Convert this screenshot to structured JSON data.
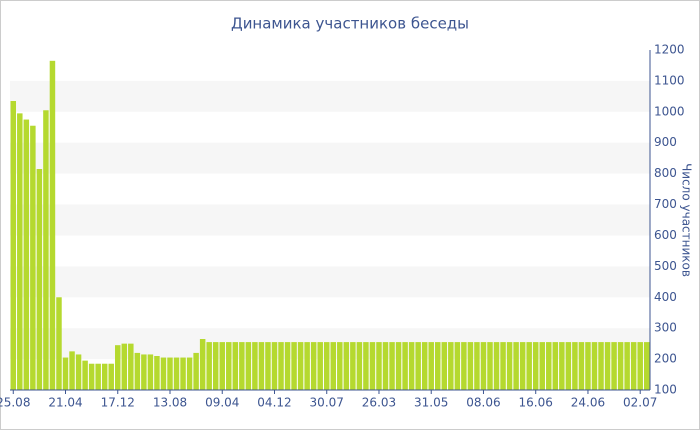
{
  "chart_data": {
    "type": "bar",
    "title": "Динамика участников беседы",
    "y_label": "Число участников",
    "categories": [
      "25.08",
      null,
      null,
      null,
      null,
      null,
      null,
      null,
      "21.04",
      null,
      null,
      null,
      null,
      null,
      null,
      null,
      "17.12",
      null,
      null,
      null,
      null,
      null,
      null,
      null,
      "13.08",
      null,
      null,
      null,
      null,
      null,
      null,
      null,
      "09.04",
      null,
      null,
      null,
      null,
      null,
      null,
      null,
      "04.12",
      null,
      null,
      null,
      null,
      null,
      null,
      null,
      "30.07",
      null,
      null,
      null,
      null,
      null,
      null,
      null,
      "26.03",
      null,
      null,
      null,
      null,
      null,
      null,
      null,
      "31.05",
      null,
      null,
      null,
      null,
      null,
      null,
      null,
      "08.06",
      null,
      null,
      null,
      null,
      null,
      null,
      null,
      "16.06",
      null,
      null,
      null,
      null,
      null,
      null,
      null,
      "24.06",
      null,
      null,
      null,
      null,
      null,
      null,
      null,
      "02.07",
      null
    ],
    "values": [
      1035,
      995,
      975,
      955,
      815,
      1005,
      1165,
      400,
      205,
      225,
      215,
      195,
      185,
      185,
      185,
      185,
      245,
      250,
      250,
      220,
      215,
      215,
      210,
      205,
      205,
      205,
      205,
      205,
      220,
      265,
      255,
      255,
      255,
      255,
      255,
      255,
      255,
      255,
      255,
      255,
      255,
      255,
      255,
      255,
      255,
      255,
      255,
      255,
      255,
      255,
      255,
      255,
      255,
      255,
      255,
      255,
      255,
      255,
      255,
      255,
      255,
      255,
      255,
      255,
      255,
      255,
      255,
      255,
      255,
      255,
      255,
      255,
      255,
      255,
      255,
      255,
      255,
      255,
      255,
      255,
      255,
      255,
      255,
      255,
      255,
      255,
      255,
      255,
      255,
      255,
      255,
      255,
      255,
      255,
      255,
      255,
      255,
      255
    ],
    "color": "#b5d92f",
    "ylim": [
      100,
      1200
    ],
    "yticks": [
      100,
      200,
      300,
      400,
      500,
      600,
      700,
      800,
      900,
      1000,
      1100,
      1200
    ],
    "y_axis_side": "right",
    "grid": "bands"
  }
}
